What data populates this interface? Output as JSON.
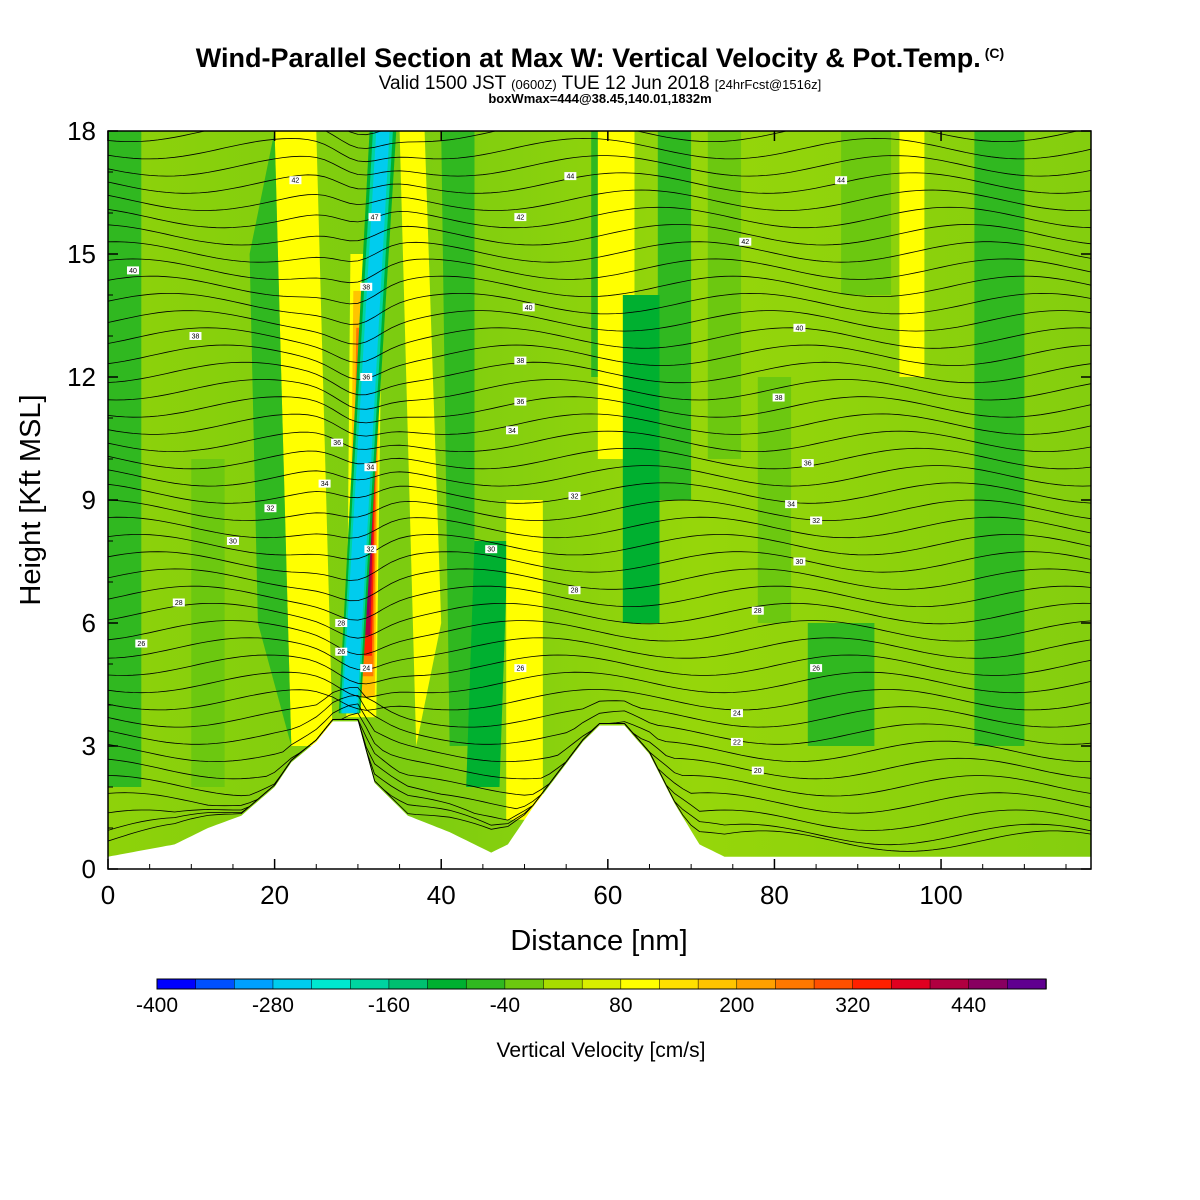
{
  "header": {
    "title": "Wind-Parallel Section at Max W: Vertical Velocity & Pot.Temp.",
    "copyright": "(C)",
    "valid_prefix": "Valid 1500 JST",
    "valid_utc": "(0600Z)",
    "valid_date": "TUE 12 Jun 2018",
    "forecast": "[24hrFcst@1516z]",
    "boxwmax": "boxWmax=444@38.45,140.01,1832m"
  },
  "chart_data": {
    "type": "heatmap",
    "xlabel": "Distance [nm]",
    "ylabel": "Height [Kft MSL]",
    "xlim": [
      0,
      118
    ],
    "ylim": [
      0,
      18
    ],
    "xticks": [
      0,
      20,
      40,
      60,
      80,
      100
    ],
    "yticks": [
      0,
      3,
      6,
      9,
      12,
      15,
      18
    ],
    "colorbar": {
      "label": "Vertical Velocity [cm/s]",
      "tick_labels": [
        -400,
        -280,
        -160,
        -40,
        80,
        200,
        320,
        440
      ],
      "min": -400,
      "max": 520,
      "step": 40,
      "colors": [
        "#0000ff",
        "#0050ff",
        "#00a0ff",
        "#00ccee",
        "#00e8d0",
        "#00d4a0",
        "#00c070",
        "#00b030",
        "#30b820",
        "#6cc810",
        "#a8dc00",
        "#d8ee00",
        "#ffff00",
        "#ffe000",
        "#ffc400",
        "#ffa000",
        "#ff7800",
        "#ff5000",
        "#ff2000",
        "#e00020",
        "#b00040",
        "#880060",
        "#600090"
      ]
    },
    "velocity_features": [
      {
        "kind": "updraft",
        "x_nm": 31,
        "z_kft": 9,
        "value": 444
      },
      {
        "kind": "downdraft",
        "x_nm": 33,
        "z_kft": 15,
        "value": -300
      },
      {
        "kind": "updraft",
        "x_nm": 50,
        "z_kft": 5,
        "value": 100
      },
      {
        "kind": "updraft",
        "x_nm": 61,
        "z_kft": 14,
        "value": 80
      },
      {
        "kind": "downdraft",
        "x_nm": 64,
        "z_kft": 10,
        "value": -100
      }
    ],
    "terrain": [
      {
        "x": 0,
        "z": 0.3
      },
      {
        "x": 8,
        "z": 0.6
      },
      {
        "x": 12,
        "z": 1
      },
      {
        "x": 16,
        "z": 1.3
      },
      {
        "x": 20,
        "z": 2
      },
      {
        "x": 22,
        "z": 2.6
      },
      {
        "x": 25,
        "z": 3.1
      },
      {
        "x": 27,
        "z": 3.6
      },
      {
        "x": 30,
        "z": 3.6
      },
      {
        "x": 32,
        "z": 2.1
      },
      {
        "x": 36,
        "z": 1.3
      },
      {
        "x": 41,
        "z": 0.9
      },
      {
        "x": 46,
        "z": 0.4
      },
      {
        "x": 48,
        "z": 0.6
      },
      {
        "x": 51,
        "z": 1.5
      },
      {
        "x": 54,
        "z": 2.3
      },
      {
        "x": 57,
        "z": 3.1
      },
      {
        "x": 59,
        "z": 3.5
      },
      {
        "x": 62,
        "z": 3.5
      },
      {
        "x": 65,
        "z": 2.8
      },
      {
        "x": 68,
        "z": 1.6
      },
      {
        "x": 71,
        "z": 0.6
      },
      {
        "x": 74,
        "z": 0.3
      },
      {
        "x": 118,
        "z": 0.3
      }
    ],
    "theta_labels": [
      {
        "text": "26",
        "x": 4,
        "z": 5.5
      },
      {
        "text": "28",
        "x": 8.5,
        "z": 6.5
      },
      {
        "text": "30",
        "x": 15,
        "z": 8
      },
      {
        "text": "32",
        "x": 19.5,
        "z": 8.8
      },
      {
        "text": "34",
        "x": 26,
        "z": 9.4
      },
      {
        "text": "38",
        "x": 10.5,
        "z": 13
      },
      {
        "text": "40",
        "x": 3,
        "z": 14.6
      },
      {
        "text": "42",
        "x": 22.5,
        "z": 16.8
      },
      {
        "text": "36",
        "x": 27.5,
        "z": 10.4
      },
      {
        "text": "34",
        "x": 31.5,
        "z": 9.8
      },
      {
        "text": "32",
        "x": 31.5,
        "z": 7.8
      },
      {
        "text": "36",
        "x": 31,
        "z": 12
      },
      {
        "text": "38",
        "x": 31,
        "z": 14.2
      },
      {
        "text": "47",
        "x": 32,
        "z": 15.9
      },
      {
        "text": "28",
        "x": 28,
        "z": 6
      },
      {
        "text": "26",
        "x": 28,
        "z": 5.3
      },
      {
        "text": "24",
        "x": 31,
        "z": 4.9
      },
      {
        "text": "44",
        "x": 55.5,
        "z": 16.9
      },
      {
        "text": "42",
        "x": 49.5,
        "z": 15.9
      },
      {
        "text": "40",
        "x": 50.5,
        "z": 13.7
      },
      {
        "text": "38",
        "x": 49.5,
        "z": 12.4
      },
      {
        "text": "36",
        "x": 49.5,
        "z": 11.4
      },
      {
        "text": "34",
        "x": 48.5,
        "z": 10.7
      },
      {
        "text": "32",
        "x": 56,
        "z": 9.1
      },
      {
        "text": "30",
        "x": 46,
        "z": 7.8
      },
      {
        "text": "28",
        "x": 56,
        "z": 6.8
      },
      {
        "text": "26",
        "x": 49.5,
        "z": 4.9
      },
      {
        "text": "44",
        "x": 88,
        "z": 16.8
      },
      {
        "text": "42",
        "x": 76.5,
        "z": 15.3
      },
      {
        "text": "40",
        "x": 83,
        "z": 13.2
      },
      {
        "text": "38",
        "x": 80.5,
        "z": 11.5
      },
      {
        "text": "36",
        "x": 84,
        "z": 9.9
      },
      {
        "text": "34",
        "x": 82,
        "z": 8.9
      },
      {
        "text": "32",
        "x": 85,
        "z": 8.5
      },
      {
        "text": "30",
        "x": 83,
        "z": 7.5
      },
      {
        "text": "28",
        "x": 78,
        "z": 6.3
      },
      {
        "text": "26",
        "x": 85,
        "z": 4.9
      },
      {
        "text": "24",
        "x": 75.5,
        "z": 3.8
      },
      {
        "text": "22",
        "x": 75.5,
        "z": 3.1
      },
      {
        "text": "20",
        "x": 78,
        "z": 2.4
      }
    ]
  }
}
